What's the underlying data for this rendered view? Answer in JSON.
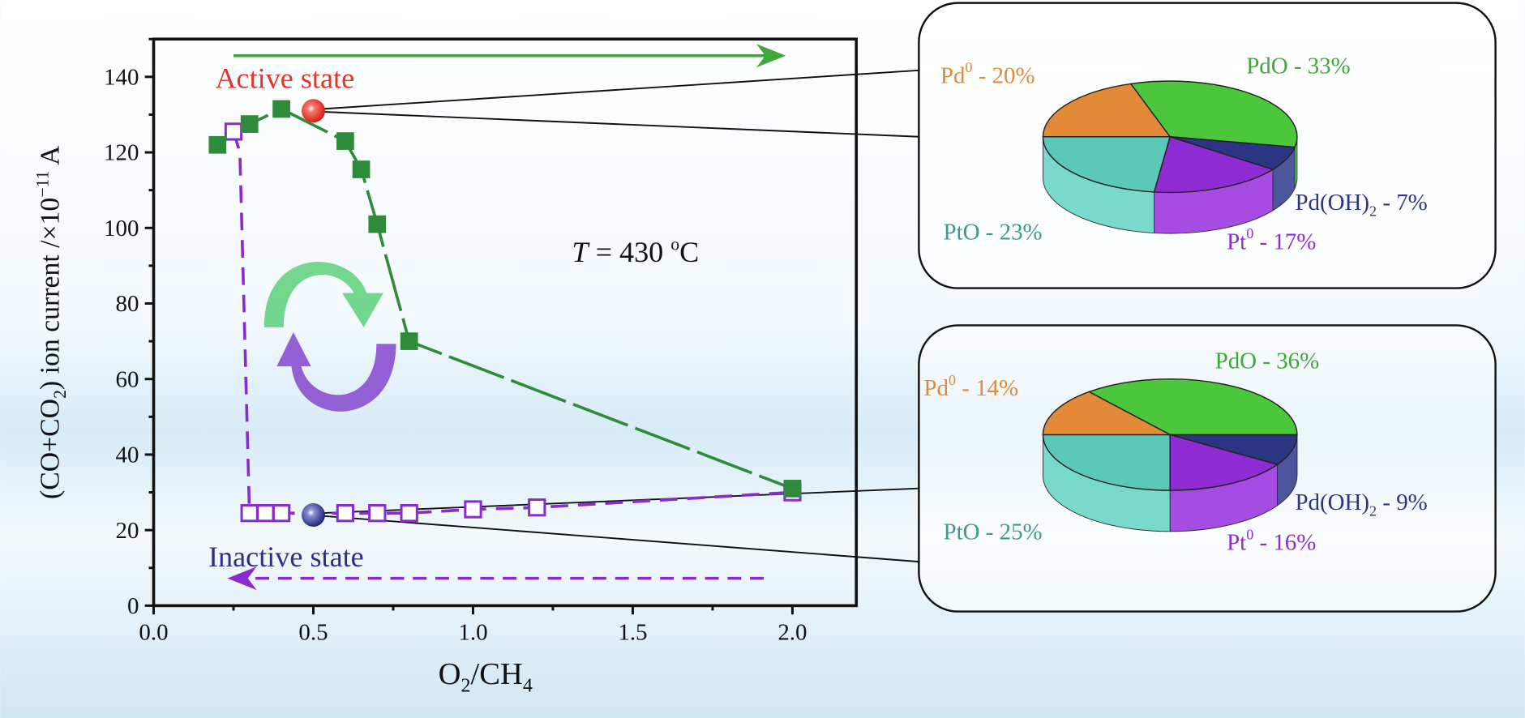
{
  "chart_data": {
    "type": "scatter",
    "xlabel": {
      "main": "O",
      "sub1": "2",
      "mid": "/CH",
      "sub2": "4"
    },
    "ylabel": {
      "p1": "(CO+CO",
      "sub": "2",
      "p2": ") ion current /×10",
      "sup": "−11",
      "p3": " A"
    },
    "xlim": [
      0,
      2.2
    ],
    "ylim": [
      0,
      150
    ],
    "xticks": [
      "0.0",
      "0.5",
      "1.0",
      "1.5",
      "2.0"
    ],
    "xtick_values": [
      0,
      0.5,
      1.0,
      1.5,
      2.0
    ],
    "yticks": [
      "0",
      "20",
      "40",
      "60",
      "80",
      "100",
      "120",
      "140"
    ],
    "ytick_values": [
      0,
      20,
      40,
      60,
      80,
      100,
      120,
      140
    ],
    "series": [
      {
        "name": "increasing O2/CH4",
        "marker": "filled-square",
        "color": "#2e8b3a",
        "x": [
          0.2,
          0.3,
          0.4,
          0.6,
          0.65,
          0.7,
          0.8,
          2.0
        ],
        "y": [
          122,
          127.5,
          131.5,
          123,
          115.5,
          101,
          70,
          31
        ]
      },
      {
        "name": "decreasing O2/CH4",
        "marker": "open-square",
        "color": "#8a2bd0",
        "x": [
          0.25,
          0.3,
          0.35,
          0.4,
          0.6,
          0.7,
          0.8,
          1.0,
          1.2,
          2.0
        ],
        "y": [
          125.5,
          24.5,
          24.5,
          24.5,
          24.5,
          24.5,
          24.5,
          25.5,
          26,
          30
        ]
      }
    ],
    "highlights": [
      {
        "label": "Active state",
        "x": 0.5,
        "y": 131,
        "color": "#e8322a"
      },
      {
        "label": "Inactive state",
        "x": 0.5,
        "y": 24,
        "color": "#2c2f8a"
      }
    ],
    "annotation": {
      "t_italic": "T",
      "rest": " = 430 ",
      "deg": "o",
      "unit": "C"
    },
    "pies": [
      {
        "name": "active-state-composition",
        "slices": [
          {
            "main": "PdO",
            "sup": "",
            "sub": "",
            "value": 33,
            "color": "#4cc63a",
            "text_color": "#3ea83a"
          },
          {
            "main": "Pd(OH)",
            "sup": "",
            "sub": "2",
            "value": 7,
            "color": "#2b3583",
            "text_color": "#2b3583"
          },
          {
            "main": "Pt",
            "sup": "0",
            "sub": "",
            "value": 17,
            "color": "#8f2bd3",
            "text_color": "#8f2bd3"
          },
          {
            "main": "PtO",
            "sup": "",
            "sub": "",
            "value": 23,
            "color": "#5cc8ba",
            "text_color": "#3a9a8c"
          },
          {
            "main": "Pd",
            "sup": "0",
            "sub": "",
            "value": 20,
            "color": "#e38a38",
            "text_color": "#e38a38"
          }
        ]
      },
      {
        "name": "inactive-state-composition",
        "slices": [
          {
            "main": "PdO",
            "sup": "",
            "sub": "",
            "value": 36,
            "color": "#4cc63a",
            "text_color": "#3ea83a"
          },
          {
            "main": "Pd(OH)",
            "sup": "",
            "sub": "2",
            "value": 9,
            "color": "#2b3583",
            "text_color": "#2b3583"
          },
          {
            "main": "Pt",
            "sup": "0",
            "sub": "",
            "value": 16,
            "color": "#8f2bd3",
            "text_color": "#8f2bd3"
          },
          {
            "main": "PtO",
            "sup": "",
            "sub": "",
            "value": 25,
            "color": "#5cc8ba",
            "text_color": "#3a9a8c"
          },
          {
            "main": "Pd",
            "sup": "0",
            "sub": "",
            "value": 14,
            "color": "#e38a38",
            "text_color": "#e38a38"
          }
        ]
      }
    ]
  }
}
